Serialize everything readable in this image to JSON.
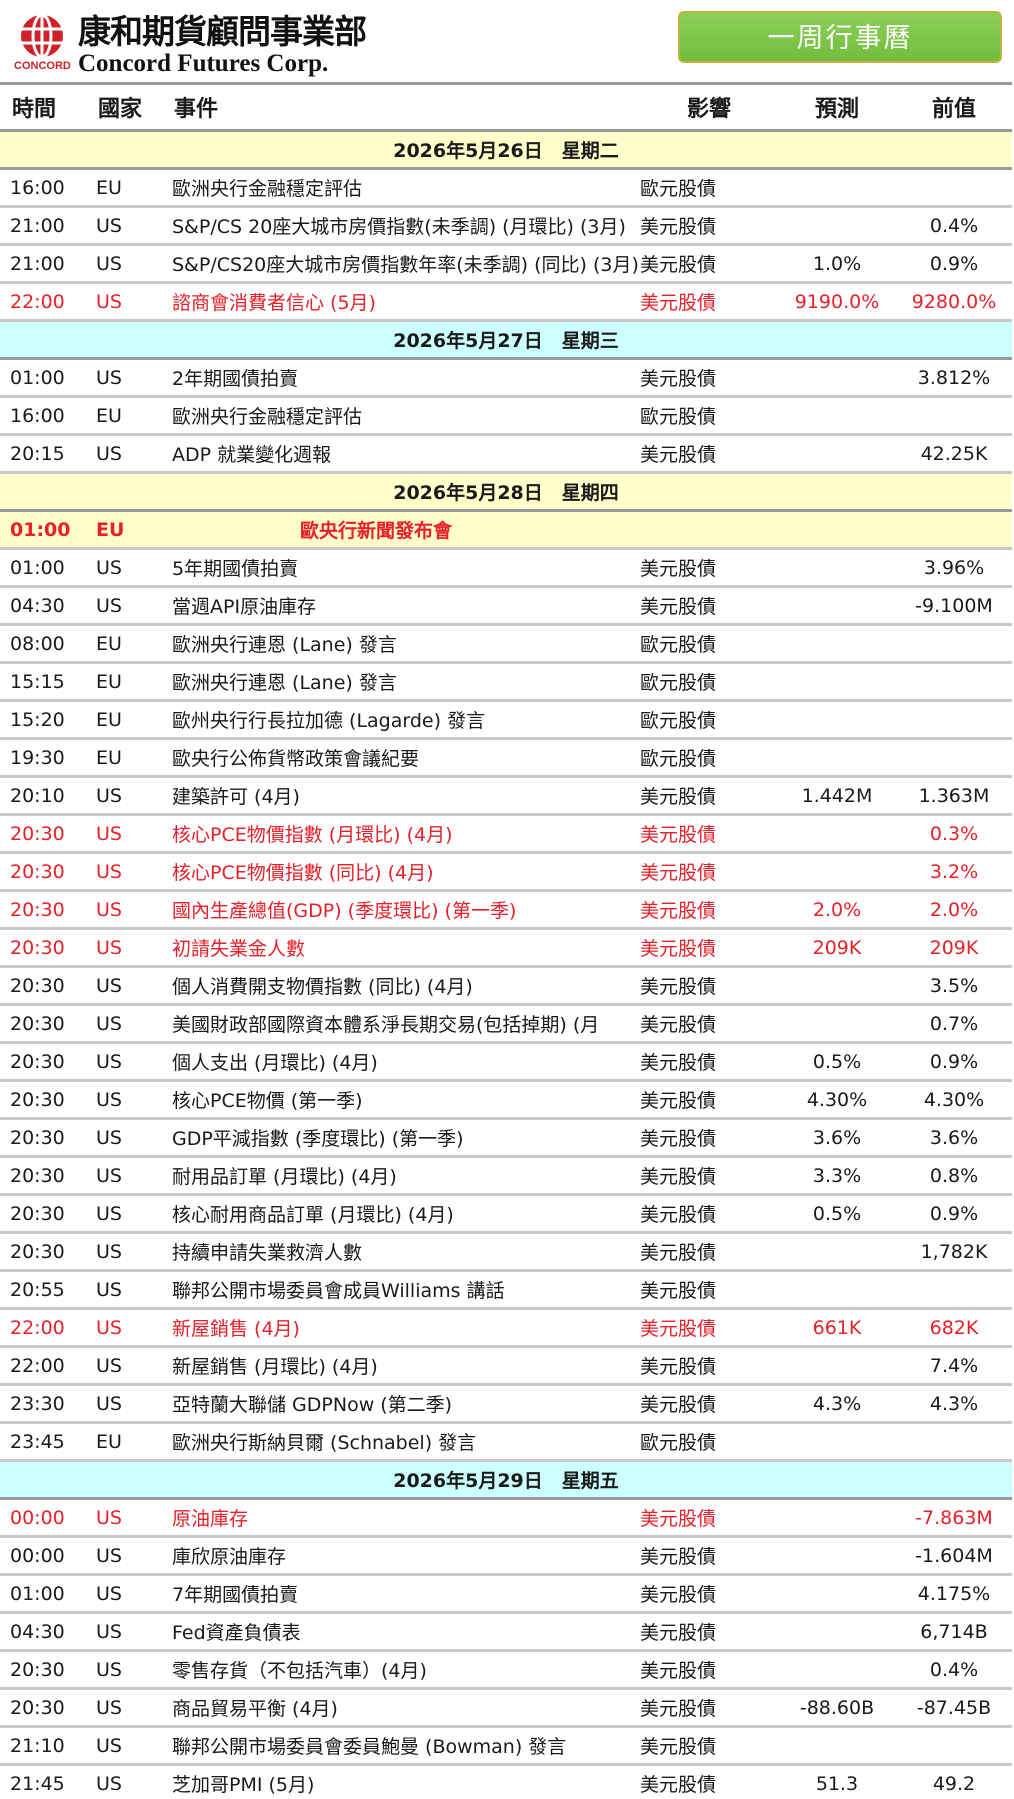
{
  "header": {
    "logo_cn": "康和期貨顧問事業部",
    "logo_en": "Concord Futures Corp.",
    "logo_sub": "CONCORD",
    "week_button": "一周行事曆"
  },
  "columns": {
    "time": "時間",
    "country": "國家",
    "event": "事件",
    "impact": "影響",
    "forecast": "預測",
    "previous": "前值"
  },
  "colors": {
    "red": "#e8202a",
    "date_yellow": "#ffffcc",
    "date_cyan": "#ccffff",
    "button_green": "#7cc448"
  },
  "days": [
    {
      "date": "2026年5月26日　星期二",
      "color": "#ffffcc",
      "events": [
        {
          "time": "16:00",
          "country": "EU",
          "event": "歐洲央行金融穩定評估",
          "impact": "歐元股債",
          "forecast": "",
          "previous": "",
          "style": ""
        },
        {
          "time": "21:00",
          "country": "US",
          "event": "S&P/CS 20座大城市房價指數(未季調) (月環比) (3月)",
          "impact": "美元股債",
          "forecast": "",
          "previous": "0.4%",
          "style": ""
        },
        {
          "time": "21:00",
          "country": "US",
          "event": "S&P/CS20座大城市房價指數年率(未季調) (同比) (3月)",
          "impact": "美元股債",
          "forecast": "1.0%",
          "previous": "0.9%",
          "style": ""
        },
        {
          "time": "22:00",
          "country": "US",
          "event": "諮商會消費者信心 (5月)",
          "impact": "美元股債",
          "forecast": "9190.0%",
          "previous": "9280.0%",
          "style": "red"
        }
      ]
    },
    {
      "date": "2026年5月27日　星期三",
      "color": "#ccffff",
      "events": [
        {
          "time": "01:00",
          "country": "US",
          "event": "2年期國債拍賣",
          "impact": "美元股債",
          "forecast": "",
          "previous": "3.812%",
          "style": ""
        },
        {
          "time": "16:00",
          "country": "EU",
          "event": "歐洲央行金融穩定評估",
          "impact": "歐元股債",
          "forecast": "",
          "previous": "",
          "style": ""
        },
        {
          "time": "20:15",
          "country": "US",
          "event": "ADP 就業變化週報",
          "impact": "美元股債",
          "forecast": "",
          "previous": "42.25K",
          "style": ""
        }
      ]
    },
    {
      "date": "2026年5月28日　星期四",
      "color": "#ffffcc",
      "events": [
        {
          "time": "01:00",
          "country": "EU",
          "event": "歐央行新聞發布會",
          "impact": "",
          "forecast": "",
          "previous": "",
          "style": "hl"
        },
        {
          "time": "01:00",
          "country": "US",
          "event": "5年期國債拍賣",
          "impact": "美元股債",
          "forecast": "",
          "previous": "3.96%",
          "style": ""
        },
        {
          "time": "04:30",
          "country": "US",
          "event": "當週API原油庫存",
          "impact": "美元股債",
          "forecast": "",
          "previous": "-9.100M",
          "style": ""
        },
        {
          "time": "08:00",
          "country": "EU",
          "event": "歐洲央行連恩 (Lane) 發言",
          "impact": "歐元股債",
          "forecast": "",
          "previous": "",
          "style": ""
        },
        {
          "time": "15:15",
          "country": "EU",
          "event": "歐洲央行連恩 (Lane) 發言",
          "impact": "歐元股債",
          "forecast": "",
          "previous": "",
          "style": ""
        },
        {
          "time": "15:20",
          "country": "EU",
          "event": "歐州央行行長拉加德 (Lagarde) 發言",
          "impact": "歐元股債",
          "forecast": "",
          "previous": "",
          "style": ""
        },
        {
          "time": "19:30",
          "country": "EU",
          "event": "歐央行公佈貨幣政策會議紀要",
          "impact": "歐元股債",
          "forecast": "",
          "previous": "",
          "style": ""
        },
        {
          "time": "20:10",
          "country": "US",
          "event": "建築許可 (4月)",
          "impact": "美元股債",
          "forecast": "1.442M",
          "previous": "1.363M",
          "style": ""
        },
        {
          "time": "20:30",
          "country": "US",
          "event": "核心PCE物價指數 (月環比) (4月)",
          "impact": "美元股債",
          "forecast": "",
          "previous": "0.3%",
          "style": "red"
        },
        {
          "time": "20:30",
          "country": "US",
          "event": "核心PCE物價指數 (同比) (4月)",
          "impact": "美元股債",
          "forecast": "",
          "previous": "3.2%",
          "style": "red"
        },
        {
          "time": "20:30",
          "country": "US",
          "event": "國內生產總值(GDP) (季度環比) (第一季)",
          "impact": "美元股債",
          "forecast": "2.0%",
          "previous": "2.0%",
          "style": "red"
        },
        {
          "time": "20:30",
          "country": "US",
          "event": "初請失業金人數",
          "impact": "美元股債",
          "forecast": "209K",
          "previous": "209K",
          "style": "red"
        },
        {
          "time": "20:30",
          "country": "US",
          "event": "個人消費開支物價指數 (同比) (4月)",
          "impact": "美元股債",
          "forecast": "",
          "previous": "3.5%",
          "style": ""
        },
        {
          "time": "20:30",
          "country": "US",
          "event": "美國財政部國際資本體系淨長期交易(包括掉期) (月",
          "impact": "美元股債",
          "forecast": "",
          "previous": "0.7%",
          "style": ""
        },
        {
          "time": "20:30",
          "country": "US",
          "event": "個人支出 (月環比) (4月)",
          "impact": "美元股債",
          "forecast": "0.5%",
          "previous": "0.9%",
          "style": ""
        },
        {
          "time": "20:30",
          "country": "US",
          "event": "核心PCE物價 (第一季)",
          "impact": "美元股債",
          "forecast": "4.30%",
          "previous": "4.30%",
          "style": ""
        },
        {
          "time": "20:30",
          "country": "US",
          "event": "GDP平減指數 (季度環比) (第一季)",
          "impact": "美元股債",
          "forecast": "3.6%",
          "previous": "3.6%",
          "style": ""
        },
        {
          "time": "20:30",
          "country": "US",
          "event": "耐用品訂單 (月環比) (4月)",
          "impact": "美元股債",
          "forecast": "3.3%",
          "previous": "0.8%",
          "style": ""
        },
        {
          "time": "20:30",
          "country": "US",
          "event": "核心耐用商品訂單 (月環比) (4月)",
          "impact": "美元股債",
          "forecast": "0.5%",
          "previous": "0.9%",
          "style": ""
        },
        {
          "time": "20:30",
          "country": "US",
          "event": "持續申請失業救濟人數",
          "impact": "美元股債",
          "forecast": "",
          "previous": "1,782K",
          "style": ""
        },
        {
          "time": "20:55",
          "country": "US",
          "event": "聯邦公開市場委員會成員Williams 講話",
          "impact": "美元股債",
          "forecast": "",
          "previous": "",
          "style": ""
        },
        {
          "time": "22:00",
          "country": "US",
          "event": "新屋銷售 (4月)",
          "impact": "美元股債",
          "forecast": "661K",
          "previous": "682K",
          "style": "red"
        },
        {
          "time": "22:00",
          "country": "US",
          "event": "新屋銷售 (月環比) (4月)",
          "impact": "美元股債",
          "forecast": "",
          "previous": "7.4%",
          "style": ""
        },
        {
          "time": "23:30",
          "country": "US",
          "event": "亞特蘭大聯儲 GDPNow (第二季)",
          "impact": "美元股債",
          "forecast": "4.3%",
          "previous": "4.3%",
          "style": ""
        },
        {
          "time": "23:45",
          "country": "EU",
          "event": "歐洲央行斯納貝爾 (Schnabel) 發言",
          "impact": "歐元股債",
          "forecast": "",
          "previous": "",
          "style": ""
        }
      ]
    },
    {
      "date": "2026年5月29日　星期五",
      "color": "#ccffff",
      "events": [
        {
          "time": "00:00",
          "country": "US",
          "event": "原油庫存",
          "impact": "美元股債",
          "forecast": "",
          "previous": "-7.863M",
          "style": "red"
        },
        {
          "time": "00:00",
          "country": "US",
          "event": "庫欣原油庫存",
          "impact": "美元股債",
          "forecast": "",
          "previous": "-1.604M",
          "style": ""
        },
        {
          "time": "01:00",
          "country": "US",
          "event": "7年期國債拍賣",
          "impact": "美元股債",
          "forecast": "",
          "previous": "4.175%",
          "style": ""
        },
        {
          "time": "04:30",
          "country": "US",
          "event": "Fed資產負債表",
          "impact": "美元股債",
          "forecast": "",
          "previous": "6,714B",
          "style": ""
        },
        {
          "time": "20:30",
          "country": "US",
          "event": "零售存貨（不包括汽車）(4月)",
          "impact": "美元股債",
          "forecast": "",
          "previous": "0.4%",
          "style": ""
        },
        {
          "time": "20:30",
          "country": "US",
          "event": "商品貿易平衡 (4月)",
          "impact": "美元股債",
          "forecast": "-88.60B",
          "previous": "-87.45B",
          "style": ""
        },
        {
          "time": "21:10",
          "country": "US",
          "event": "聯邦公開市場委員會委員鮑曼 (Bowman) 發言",
          "impact": "美元股債",
          "forecast": "",
          "previous": "",
          "style": ""
        },
        {
          "time": "21:45",
          "country": "US",
          "event": "芝加哥PMI (5月)",
          "impact": "美元股債",
          "forecast": "51.3",
          "previous": "49.2",
          "style": ""
        }
      ]
    }
  ]
}
